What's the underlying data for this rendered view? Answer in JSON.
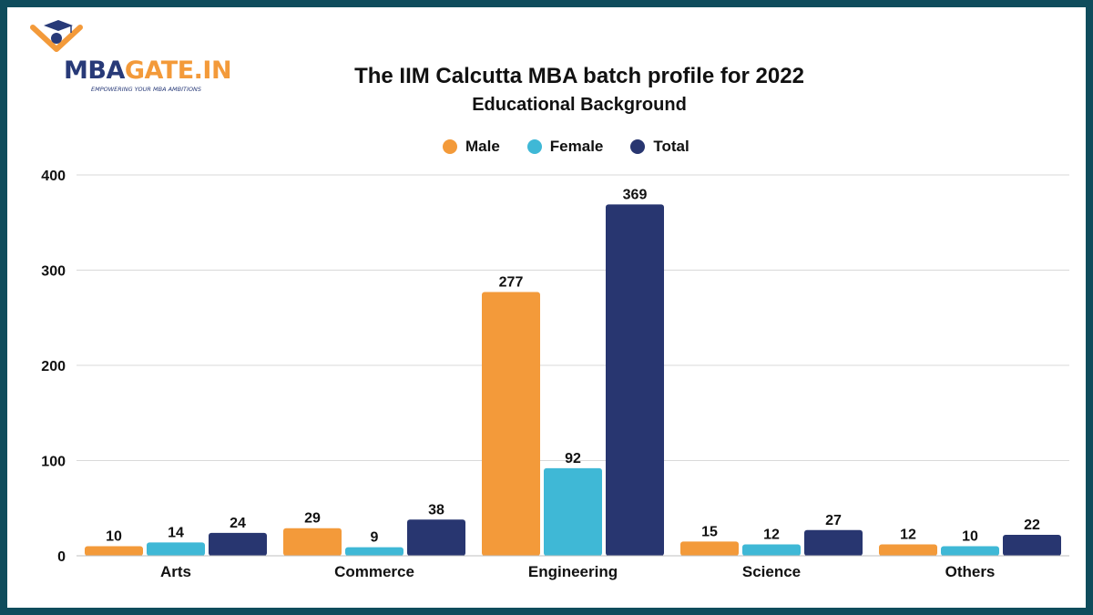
{
  "logo": {
    "text_part1": "MBA",
    "text_part2": "GATE.IN",
    "tagline": "EMPOWERING YOUR MBA AMBITIONS",
    "icon": "graduation-cap-icon"
  },
  "colors": {
    "frame": "#0f4c5c",
    "male": "#f39a3a",
    "female": "#3fb8d6",
    "total": "#283670"
  },
  "chart_data": {
    "type": "bar",
    "title": "The IIM Calcutta MBA batch profile for 2022",
    "subtitle": "Educational Background",
    "categories": [
      "Arts",
      "Commerce",
      "Engineering",
      "Science",
      "Others"
    ],
    "series": [
      {
        "name": "Male",
        "values": [
          10,
          29,
          277,
          15,
          12
        ],
        "color": "#f39a3a"
      },
      {
        "name": "Female",
        "values": [
          14,
          9,
          92,
          12,
          10
        ],
        "color": "#3fb8d6"
      },
      {
        "name": "Total",
        "values": [
          24,
          38,
          369,
          27,
          22
        ],
        "color": "#283670"
      }
    ],
    "ylim": [
      0,
      400
    ],
    "yticks": [
      0,
      100,
      200,
      300,
      400
    ],
    "grid": true,
    "legend_position": "top-center",
    "data_labels": true
  }
}
